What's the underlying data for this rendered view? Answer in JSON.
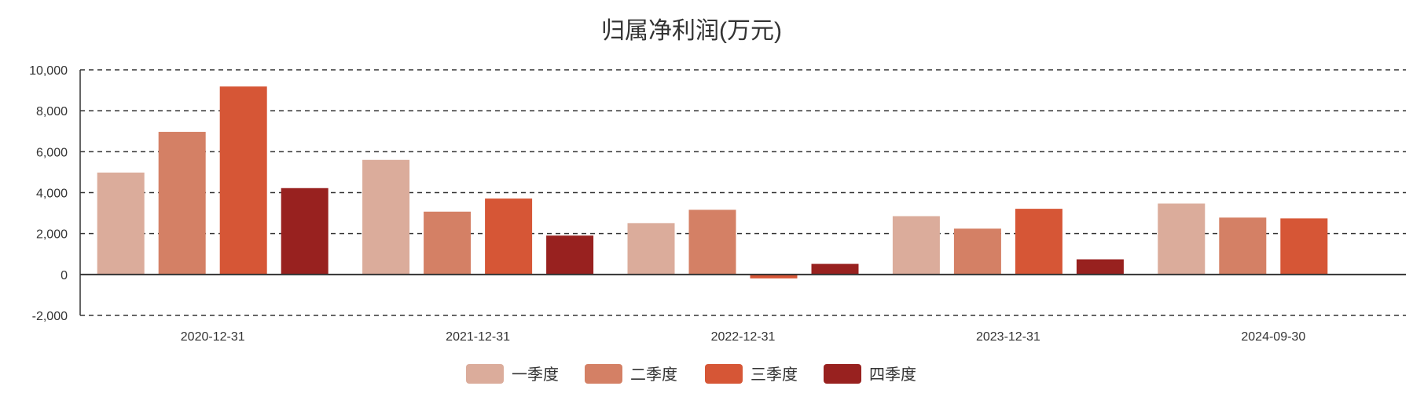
{
  "chart_data": {
    "type": "bar",
    "title": "归属净利润(万元)",
    "xlabel": "",
    "ylabel": "",
    "ylim": [
      -2000,
      10000
    ],
    "yticks": [
      -2000,
      0,
      2000,
      4000,
      6000,
      8000,
      10000
    ],
    "ytick_labels": [
      "-2,000",
      "0",
      "2,000",
      "4,000",
      "6,000",
      "8,000",
      "10,000"
    ],
    "grid": true,
    "legend_position": "bottom-center",
    "categories": [
      "2020-12-31",
      "2021-12-31",
      "2022-12-31",
      "2023-12-31",
      "2024-09-30"
    ],
    "series": [
      {
        "name": "一季度",
        "color": "#dbac9b",
        "values": [
          4980,
          5600,
          2510,
          2850,
          3465
        ]
      },
      {
        "name": "二季度",
        "color": "#d48065",
        "values": [
          6970,
          3070,
          3160,
          2240,
          2780
        ]
      },
      {
        "name": "三季度",
        "color": "#d65636",
        "values": [
          9185,
          3710,
          -190,
          3210,
          2740
        ]
      },
      {
        "name": "四季度",
        "color": "#98211f",
        "values": [
          4220,
          1900,
          520,
          740,
          null
        ]
      }
    ]
  }
}
